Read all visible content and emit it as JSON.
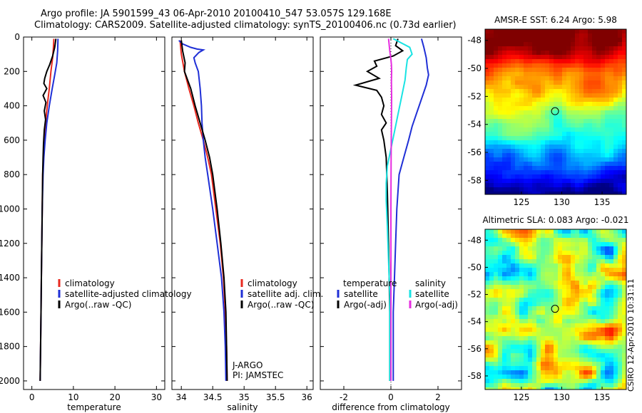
{
  "header": {
    "line1": "Argo profile: JA 5901599_43 06-Apr-2010 20100410_547 53.057S 129.168E",
    "line2": "Climatology: CARS2009. Satellite-adjusted climatology: synTS_20100406.nc (0.73d earlier)"
  },
  "stamp": "CSIRO 12-Apr-2010 10:31:11",
  "colors": {
    "climatology": "#e8291f",
    "satellite": "#1f2fd6",
    "argo": "#000000",
    "satellite_salinity": "#19e3e3",
    "argo_salinity": "#e62de0"
  },
  "chart_data": [
    {
      "type": "line",
      "xlabel": "temperature",
      "xlim": [
        -2,
        32
      ],
      "ylim": [
        2050,
        0
      ],
      "xticks": [
        "0",
        "10",
        "20",
        "30"
      ],
      "yticks": [
        "0",
        "200",
        "400",
        "600",
        "800",
        "1000",
        "1200",
        "1400",
        "1600",
        "1800",
        "2000"
      ],
      "legend": [
        "climatology",
        "satellite-adjusted climatology",
        "Argo(..raw -QC)"
      ],
      "series": [
        {
          "name": "climatology",
          "color": "red",
          "points": [
            [
              5.3,
              10
            ],
            [
              5.2,
              60
            ],
            [
              5.0,
              120
            ],
            [
              4.6,
              200
            ],
            [
              4.2,
              300
            ],
            [
              3.7,
              400
            ],
            [
              3.3,
              500
            ],
            [
              3.0,
              600
            ],
            [
              2.8,
              700
            ],
            [
              2.6,
              800
            ],
            [
              2.5,
              1000
            ],
            [
              2.4,
              1200
            ],
            [
              2.3,
              1400
            ],
            [
              2.2,
              1600
            ],
            [
              2.1,
              1800
            ],
            [
              2.0,
              2000
            ]
          ]
        },
        {
          "name": "satellite-adjusted climatology",
          "color": "blue",
          "points": [
            [
              6.3,
              10
            ],
            [
              6.2,
              80
            ],
            [
              6.0,
              150
            ],
            [
              5.5,
              220
            ],
            [
              4.9,
              300
            ],
            [
              4.2,
              400
            ],
            [
              3.6,
              500
            ],
            [
              3.2,
              600
            ],
            [
              2.9,
              700
            ],
            [
              2.7,
              800
            ],
            [
              2.5,
              1000
            ],
            [
              2.4,
              1200
            ],
            [
              2.3,
              1400
            ],
            [
              2.2,
              1600
            ],
            [
              2.1,
              1800
            ],
            [
              2.0,
              2000
            ]
          ]
        },
        {
          "name": "Argo(..raw -QC)",
          "color": "black",
          "points": [
            [
              5.8,
              10
            ],
            [
              5.5,
              60
            ],
            [
              5.0,
              110
            ],
            [
              4.3,
              160
            ],
            [
              3.6,
              200
            ],
            [
              3.1,
              240
            ],
            [
              2.9,
              270
            ],
            [
              3.6,
              300
            ],
            [
              2.7,
              340
            ],
            [
              3.4,
              380
            ],
            [
              3.0,
              430
            ],
            [
              3.3,
              480
            ],
            [
              3.0,
              540
            ],
            [
              2.8,
              620
            ],
            [
              2.7,
              700
            ],
            [
              2.6,
              800
            ],
            [
              2.5,
              1000
            ],
            [
              2.4,
              1200
            ],
            [
              2.3,
              1400
            ],
            [
              2.2,
              1600
            ],
            [
              2.1,
              1800
            ],
            [
              2.0,
              2000
            ]
          ]
        }
      ]
    },
    {
      "type": "line",
      "xlabel": "salinity",
      "xlim": [
        33.85,
        36.1
      ],
      "ylim": [
        2050,
        0
      ],
      "xticks": [
        "34",
        "34.5",
        "35",
        "35.5",
        "36"
      ],
      "legend": [
        "climatology",
        "satellite adj. clim.",
        "Argo(..raw -QC)"
      ],
      "annotations": [
        "J-ARGO",
        "PI: JAMSTEC"
      ],
      "series": [
        {
          "name": "climatology",
          "color": "red",
          "points": [
            [
              33.98,
              20
            ],
            [
              34.0,
              100
            ],
            [
              34.05,
              200
            ],
            [
              34.12,
              300
            ],
            [
              34.2,
              400
            ],
            [
              34.27,
              500
            ],
            [
              34.35,
              600
            ],
            [
              34.42,
              700
            ],
            [
              34.48,
              800
            ],
            [
              34.55,
              1000
            ],
            [
              34.62,
              1200
            ],
            [
              34.67,
              1400
            ],
            [
              34.7,
              1600
            ],
            [
              34.72,
              1800
            ],
            [
              34.73,
              2000
            ]
          ]
        },
        {
          "name": "satellite adj. clim.",
          "color": "blue",
          "points": [
            [
              33.96,
              20
            ],
            [
              34.02,
              40
            ],
            [
              34.15,
              60
            ],
            [
              34.25,
              70
            ],
            [
              34.35,
              75
            ],
            [
              34.28,
              90
            ],
            [
              34.2,
              120
            ],
            [
              34.22,
              150
            ],
            [
              34.27,
              200
            ],
            [
              34.3,
              300
            ],
            [
              34.32,
              400
            ],
            [
              34.33,
              500
            ],
            [
              34.35,
              600
            ],
            [
              34.38,
              700
            ],
            [
              34.42,
              800
            ],
            [
              34.5,
              1000
            ],
            [
              34.57,
              1200
            ],
            [
              34.64,
              1400
            ],
            [
              34.68,
              1600
            ],
            [
              34.7,
              1800
            ],
            [
              34.71,
              2000
            ]
          ]
        },
        {
          "name": "Argo(..raw -QC)",
          "color": "black",
          "points": [
            [
              34.0,
              20
            ],
            [
              34.02,
              80
            ],
            [
              34.06,
              150
            ],
            [
              34.05,
              200
            ],
            [
              34.15,
              300
            ],
            [
              34.22,
              400
            ],
            [
              34.3,
              500
            ],
            [
              34.38,
              600
            ],
            [
              34.45,
              700
            ],
            [
              34.5,
              800
            ],
            [
              34.57,
              1000
            ],
            [
              34.63,
              1200
            ],
            [
              34.68,
              1400
            ],
            [
              34.71,
              1600
            ],
            [
              34.72,
              1800
            ],
            [
              34.73,
              2000
            ]
          ]
        }
      ]
    },
    {
      "type": "line",
      "xlabel": "difference from climatology",
      "xlim": [
        -3,
        3
      ],
      "ylim": [
        2050,
        0
      ],
      "xticks": [
        "-2",
        "0",
        "2"
      ],
      "legend": [
        "temperature",
        "satellite",
        "Argo(-adj)",
        "salinity",
        "satellite",
        "Argo(-adj)"
      ],
      "series": [
        {
          "name": "temperature satellite",
          "color": "blue",
          "points": [
            [
              1.3,
              10
            ],
            [
              1.4,
              60
            ],
            [
              1.5,
              120
            ],
            [
              1.55,
              180
            ],
            [
              1.6,
              220
            ],
            [
              1.5,
              280
            ],
            [
              1.3,
              360
            ],
            [
              1.1,
              440
            ],
            [
              0.9,
              520
            ],
            [
              0.75,
              600
            ],
            [
              0.55,
              700
            ],
            [
              0.35,
              800
            ],
            [
              0.25,
              1000
            ],
            [
              0.2,
              1200
            ],
            [
              0.15,
              1400
            ],
            [
              0.1,
              1600
            ],
            [
              0.1,
              1800
            ],
            [
              0.1,
              2000
            ]
          ]
        },
        {
          "name": "temperature Argo(-adj)",
          "color": "black",
          "points": [
            [
              0.3,
              10
            ],
            [
              0.2,
              50
            ],
            [
              0.5,
              80
            ],
            [
              0.1,
              110
            ],
            [
              -0.7,
              140
            ],
            [
              -0.6,
              170
            ],
            [
              -1.0,
              200
            ],
            [
              -0.5,
              240
            ],
            [
              -1.5,
              280
            ],
            [
              -0.6,
              310
            ],
            [
              -0.4,
              350
            ],
            [
              -0.3,
              400
            ],
            [
              -0.4,
              450
            ],
            [
              -0.2,
              500
            ],
            [
              -0.4,
              540
            ],
            [
              -0.3,
              600
            ],
            [
              -0.2,
              700
            ],
            [
              -0.15,
              900
            ],
            [
              -0.1,
              1200
            ],
            [
              -0.05,
              1600
            ],
            [
              -0.05,
              2000
            ]
          ]
        },
        {
          "name": "salinity satellite",
          "color": "cyan",
          "points": [
            [
              0.1,
              10
            ],
            [
              0.8,
              60
            ],
            [
              0.9,
              100
            ],
            [
              0.7,
              130
            ],
            [
              0.65,
              180
            ],
            [
              0.6,
              250
            ],
            [
              0.45,
              350
            ],
            [
              0.3,
              450
            ],
            [
              0.15,
              550
            ],
            [
              0.0,
              650
            ],
            [
              -0.15,
              750
            ],
            [
              -0.2,
              850
            ],
            [
              -0.2,
              950
            ],
            [
              -0.15,
              1100
            ],
            [
              -0.1,
              1300
            ],
            [
              -0.05,
              1500
            ],
            [
              -0.05,
              1700
            ],
            [
              -0.05,
              2000
            ]
          ]
        },
        {
          "name": "salinity Argo(-adj)",
          "color": "magenta",
          "points": [
            [
              -0.1,
              10
            ],
            [
              -0.05,
              80
            ],
            [
              0.0,
              130
            ],
            [
              0.02,
              160
            ],
            [
              0.03,
              200
            ],
            [
              0.02,
              260
            ],
            [
              0.03,
              350
            ],
            [
              0.02,
              500
            ],
            [
              0.01,
              700
            ],
            [
              0.0,
              1000
            ],
            [
              0.0,
              1400
            ],
            [
              0.0,
              2000
            ]
          ]
        }
      ]
    },
    {
      "type": "heatmap",
      "title": "AMSR-E SST: 6.24 Argo: 5.98",
      "xticks": [
        "125",
        "130",
        "135"
      ],
      "yticks": [
        "-48",
        "-50",
        "-52",
        "-54",
        "-56",
        "-58"
      ],
      "xlim": [
        120.5,
        138
      ],
      "ylim": [
        -59,
        -47.2
      ],
      "marker": {
        "lon": 129.168,
        "lat": -53.057
      }
    },
    {
      "type": "heatmap",
      "title": "Altimetric SLA: 0.083 Argo: -0.021",
      "xticks": [
        "125",
        "130",
        "135"
      ],
      "yticks": [
        "-48",
        "-50",
        "-52",
        "-54",
        "-56",
        "-58"
      ],
      "xlim": [
        120.5,
        138
      ],
      "ylim": [
        -59,
        -47.2
      ],
      "marker": {
        "lon": 129.168,
        "lat": -53.057
      }
    }
  ]
}
